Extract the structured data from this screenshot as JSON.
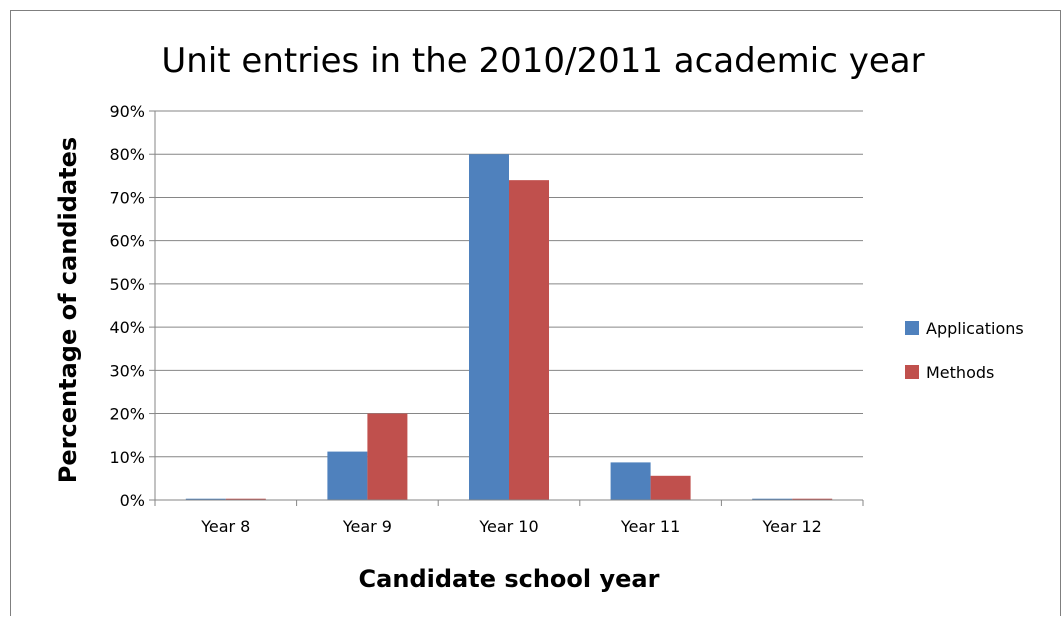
{
  "chart_data": {
    "type": "bar",
    "title": "Unit entries in the 2010/2011 academic year",
    "xlabel": "Candidate school year",
    "ylabel": "Percentage of candidates",
    "categories": [
      "Year 8",
      "Year 9",
      "Year 10",
      "Year 11",
      "Year 12"
    ],
    "series": [
      {
        "name": "Applications",
        "color": "#4f81bd",
        "values": [
          0.3,
          11.2,
          80.0,
          8.7,
          0.3
        ]
      },
      {
        "name": "Methods",
        "color": "#c0504d",
        "values": [
          0.3,
          20.0,
          74.0,
          5.6,
          0.3
        ]
      }
    ],
    "ylim": [
      0,
      90
    ],
    "yticks": [
      0,
      10,
      20,
      30,
      40,
      50,
      60,
      70,
      80,
      90
    ],
    "ytick_labels": [
      "0%",
      "10%",
      "20%",
      "30%",
      "40%",
      "50%",
      "60%",
      "70%",
      "80%",
      "90%"
    ],
    "grid": true,
    "legend_position": "right"
  }
}
